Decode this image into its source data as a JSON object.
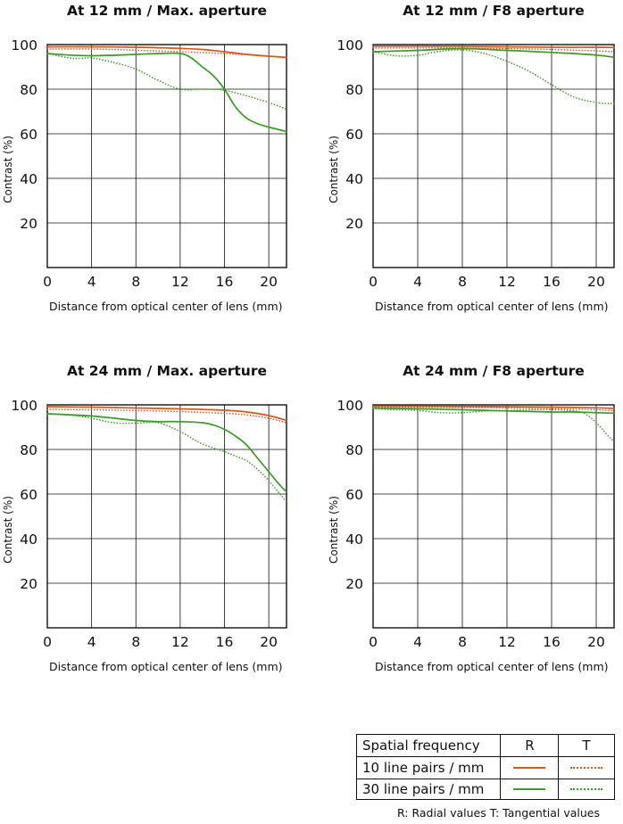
{
  "colors": {
    "r10": "#d9561f",
    "t10": "#d9561f",
    "r30": "#3a9a2a",
    "t30": "#3a9a2a",
    "axis": "#111111",
    "grid": "#111111"
  },
  "legend": {
    "header": {
      "label": "Spatial frequency",
      "r": "R",
      "t": "T"
    },
    "rows": [
      {
        "label": "10 line pairs / mm",
        "series_r": "r10",
        "series_t": "t10"
      },
      {
        "label": "30 line pairs / mm",
        "series_r": "r30",
        "series_t": "t30"
      }
    ],
    "footnote": "R: Radial values  T: Tangential values"
  },
  "chart_data": [
    {
      "type": "line",
      "title": "At 12 mm / Max. aperture",
      "xlabel": "Distance from optical center of lens (mm)",
      "ylabel": "Contrast (%)",
      "xlim": [
        0,
        21.6
      ],
      "ylim": [
        0,
        100
      ],
      "xticks": [
        "0",
        "4",
        "8",
        "12",
        "16",
        "20"
      ],
      "yticks": [
        "20",
        "40",
        "60",
        "80",
        "100"
      ],
      "grid": true,
      "series": [
        {
          "name": "R",
          "frequency": "10 line pairs / mm",
          "style": "solid",
          "color": "r10",
          "x": [
            0,
            4,
            8,
            12,
            14,
            16,
            18,
            20,
            21.6
          ],
          "y": [
            99,
            99,
            98.8,
            98.3,
            97.8,
            96.8,
            95.6,
            94.8,
            94.3
          ]
        },
        {
          "name": "T",
          "frequency": "10 line pairs / mm",
          "style": "dotted",
          "color": "t10",
          "x": [
            0,
            4,
            8,
            12,
            14,
            16,
            18,
            20,
            21.6
          ],
          "y": [
            98,
            98,
            97.5,
            96.8,
            96.4,
            96,
            95.4,
            94.7,
            94
          ]
        },
        {
          "name": "R",
          "frequency": "30 line pairs / mm",
          "style": "solid",
          "color": "r30",
          "x": [
            0,
            2,
            4,
            6,
            8,
            10,
            12,
            13,
            14,
            15,
            16,
            17,
            18,
            19,
            20,
            21.6
          ],
          "y": [
            96,
            95.3,
            95,
            95.2,
            95.6,
            96,
            96,
            94,
            90,
            86,
            80,
            72,
            67,
            64.5,
            63,
            61
          ]
        },
        {
          "name": "T",
          "frequency": "30 line pairs / mm",
          "style": "dotted",
          "color": "t30",
          "x": [
            0,
            2,
            3,
            4,
            6,
            8,
            10,
            12,
            14,
            16,
            18,
            20,
            21.6
          ],
          "y": [
            96,
            94,
            93.8,
            94,
            92,
            89,
            84,
            80,
            80,
            79.5,
            77,
            74,
            71
          ]
        }
      ]
    },
    {
      "type": "line",
      "title": "At 12 mm / F8 aperture",
      "xlabel": "Distance from optical center of lens (mm)",
      "ylabel": "Contrast (%)",
      "xlim": [
        0,
        21.6
      ],
      "ylim": [
        0,
        100
      ],
      "xticks": [
        "0",
        "4",
        "8",
        "12",
        "16",
        "20"
      ],
      "yticks": [
        "20",
        "40",
        "60",
        "80",
        "100"
      ],
      "grid": true,
      "series": [
        {
          "name": "R",
          "frequency": "10 line pairs / mm",
          "style": "solid",
          "color": "r10",
          "x": [
            0,
            4,
            8,
            12,
            16,
            20,
            21.6
          ],
          "y": [
            99.3,
            99.3,
            99.2,
            99,
            98.8,
            98.8,
            98.7
          ]
        },
        {
          "name": "T",
          "frequency": "10 line pairs / mm",
          "style": "dotted",
          "color": "t10",
          "x": [
            0,
            4,
            8,
            12,
            16,
            20,
            21.6
          ],
          "y": [
            98.5,
            98.5,
            98.5,
            98.2,
            97.8,
            97.2,
            96.8
          ]
        },
        {
          "name": "R",
          "frequency": "30 line pairs / mm",
          "style": "solid",
          "color": "r30",
          "x": [
            0,
            4,
            8,
            12,
            16,
            20,
            21.6
          ],
          "y": [
            96.8,
            97.4,
            98.2,
            97.4,
            96.5,
            95.3,
            94.3
          ]
        },
        {
          "name": "T",
          "frequency": "30 line pairs / mm",
          "style": "dotted",
          "color": "t30",
          "x": [
            0,
            2,
            4,
            6,
            8,
            10,
            12,
            14,
            16,
            18,
            20,
            21.6
          ],
          "y": [
            96.8,
            95,
            95.2,
            97,
            97.6,
            96,
            92.5,
            88,
            82,
            76.5,
            74,
            73.5
          ]
        }
      ]
    },
    {
      "type": "line",
      "title": "At 24 mm / Max. aperture",
      "xlabel": "Distance from optical center of lens (mm)",
      "ylabel": "Contrast (%)",
      "xlim": [
        0,
        21.6
      ],
      "ylim": [
        0,
        100
      ],
      "xticks": [
        "0",
        "4",
        "8",
        "12",
        "16",
        "20"
      ],
      "yticks": [
        "20",
        "40",
        "60",
        "80",
        "100"
      ],
      "grid": true,
      "series": [
        {
          "name": "R",
          "frequency": "10 line pairs / mm",
          "style": "solid",
          "color": "r10",
          "x": [
            0,
            4,
            8,
            12,
            16,
            18,
            20,
            21.6
          ],
          "y": [
            99.2,
            99,
            98.6,
            98.2,
            97.6,
            96.8,
            95.2,
            93
          ]
        },
        {
          "name": "T",
          "frequency": "10 line pairs / mm",
          "style": "dotted",
          "color": "t10",
          "x": [
            0,
            4,
            8,
            12,
            16,
            18,
            20,
            21.6
          ],
          "y": [
            98,
            97.8,
            97.5,
            97,
            96.2,
            95.5,
            94,
            92
          ]
        },
        {
          "name": "R",
          "frequency": "30 line pairs / mm",
          "style": "solid",
          "color": "r30",
          "x": [
            0,
            4,
            8,
            10,
            12,
            14,
            15,
            16,
            17,
            18,
            19,
            20,
            21,
            21.6
          ],
          "y": [
            96,
            95,
            93,
            92.5,
            92.5,
            92,
            91,
            89,
            86,
            82,
            76,
            70,
            64,
            61
          ]
        },
        {
          "name": "T",
          "frequency": "30 line pairs / mm",
          "style": "dotted",
          "color": "t30",
          "x": [
            0,
            2,
            4,
            6,
            8,
            10,
            12,
            14,
            16,
            17,
            18,
            19,
            20,
            21,
            21.6
          ],
          "y": [
            96,
            95.5,
            94,
            92,
            91.8,
            92,
            88,
            82.5,
            79,
            77,
            75,
            71,
            66,
            60,
            56.5
          ]
        }
      ]
    },
    {
      "type": "line",
      "title": "At 24 mm / F8 aperture",
      "xlabel": "Distance from optical center of lens (mm)",
      "ylabel": "Contrast (%)",
      "xlim": [
        0,
        21.6
      ],
      "ylim": [
        0,
        100
      ],
      "xticks": [
        "0",
        "4",
        "8",
        "12",
        "16",
        "20"
      ],
      "yticks": [
        "20",
        "40",
        "60",
        "80",
        "100"
      ],
      "grid": true,
      "series": [
        {
          "name": "R",
          "frequency": "10 line pairs / mm",
          "style": "solid",
          "color": "r10",
          "x": [
            0,
            4,
            8,
            12,
            16,
            20,
            21.6
          ],
          "y": [
            99.5,
            99.4,
            99.3,
            99.2,
            99,
            98.7,
            98.4
          ]
        },
        {
          "name": "T",
          "frequency": "10 line pairs / mm",
          "style": "dotted",
          "color": "t10",
          "x": [
            0,
            4,
            8,
            12,
            16,
            20,
            21.6
          ],
          "y": [
            99,
            98.9,
            98.8,
            98.7,
            98.3,
            97.8,
            97.3
          ]
        },
        {
          "name": "R",
          "frequency": "30 line pairs / mm",
          "style": "solid",
          "color": "r30",
          "x": [
            0,
            4,
            8,
            12,
            16,
            18,
            20,
            21.6
          ],
          "y": [
            98.6,
            98.2,
            97.8,
            97.3,
            96.8,
            96.8,
            96.5,
            96.3
          ]
        },
        {
          "name": "T",
          "frequency": "30 line pairs / mm",
          "style": "dotted",
          "color": "t30",
          "x": [
            0,
            2,
            4,
            6,
            8,
            10,
            12,
            14,
            16,
            18,
            19,
            20,
            21,
            21.6
          ],
          "y": [
            98.3,
            97.8,
            97.5,
            96.5,
            96.5,
            97.2,
            97.5,
            97.8,
            97.8,
            97.3,
            96,
            92,
            86.5,
            83.5
          ]
        }
      ]
    }
  ]
}
